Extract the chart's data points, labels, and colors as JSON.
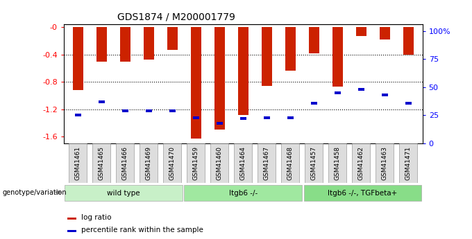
{
  "title": "GDS1874 / M200001779",
  "samples": [
    "GSM41461",
    "GSM41465",
    "GSM41466",
    "GSM41469",
    "GSM41470",
    "GSM41459",
    "GSM41460",
    "GSM41464",
    "GSM41467",
    "GSM41468",
    "GSM41457",
    "GSM41458",
    "GSM41462",
    "GSM41463",
    "GSM41471"
  ],
  "log_ratio": [
    -0.92,
    -0.5,
    -0.5,
    -0.47,
    -0.33,
    -1.63,
    -1.5,
    -1.28,
    -0.86,
    -0.63,
    -0.38,
    -0.87,
    -0.13,
    -0.18,
    -0.4
  ],
  "percentile": [
    25,
    37,
    29,
    29,
    29,
    23,
    18,
    22,
    23,
    23,
    36,
    45,
    48,
    43,
    36
  ],
  "groups": [
    {
      "label": "wild type",
      "start": 0,
      "end": 5,
      "color": "#c8f0c8"
    },
    {
      "label": "Itgb6 -/-",
      "start": 5,
      "end": 10,
      "color": "#a0e8a0"
    },
    {
      "label": "Itgb6 -/-, TGFbeta+",
      "start": 10,
      "end": 15,
      "color": "#88dd88"
    }
  ],
  "ylim_left": [
    -1.7,
    0.05
  ],
  "ylim_right": [
    0,
    106.25
  ],
  "yticks_left": [
    0,
    -0.4,
    -0.8,
    -1.2,
    -1.6
  ],
  "ytick_labels_left": [
    "-0",
    "-0.4",
    "-0.8",
    "-1.2",
    "-1.6"
  ],
  "yticks_right": [
    0,
    25,
    50,
    75,
    100
  ],
  "ytick_labels_right": [
    "0",
    "25",
    "50",
    "75",
    "100%"
  ],
  "bar_color": "#cc2200",
  "percentile_color": "#0000cc",
  "genotype_label": "genotype/variation",
  "legend_log_ratio": "log ratio",
  "legend_percentile": "percentile rank within the sample",
  "bar_width": 0.45
}
